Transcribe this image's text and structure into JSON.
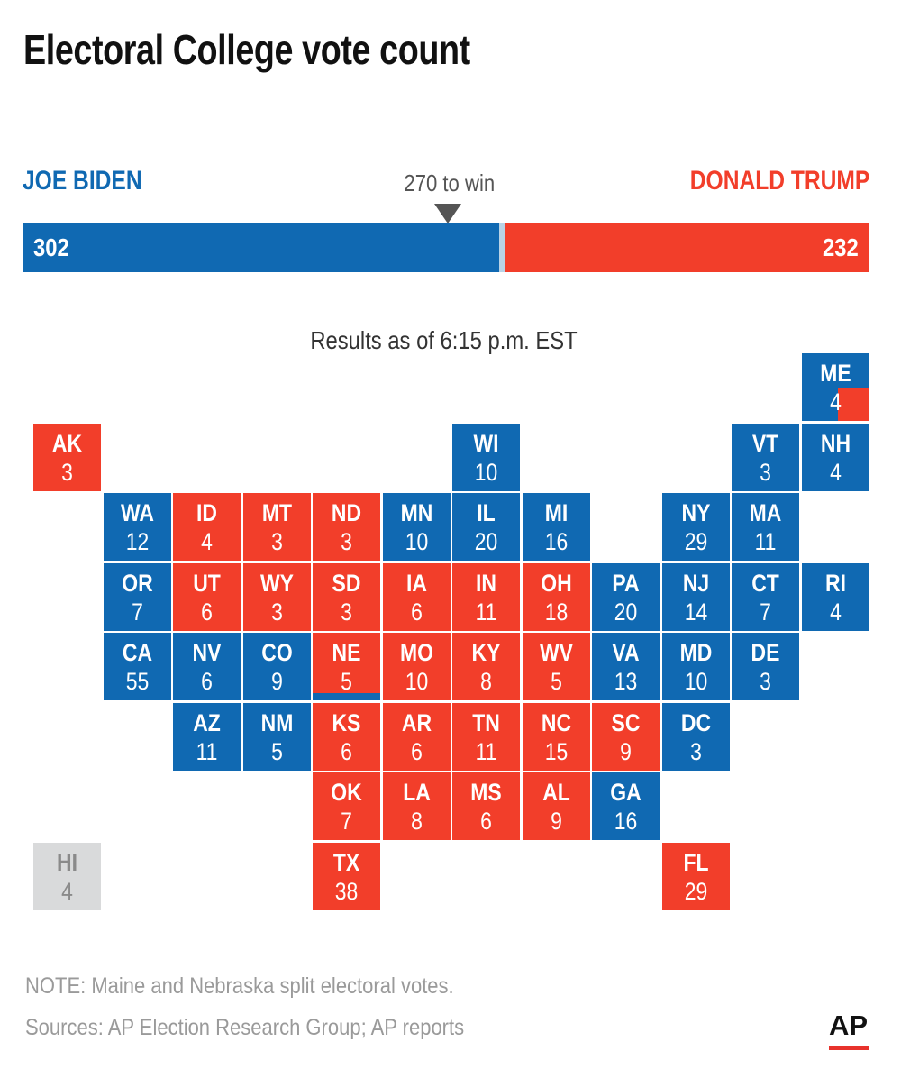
{
  "title": "Electoral College vote count",
  "colors": {
    "biden": "#1069b2",
    "trump": "#f23e2a",
    "uncalled": "#d9dadb"
  },
  "candidates": {
    "biden": {
      "name": "JOE BIDEN",
      "votes": 302
    },
    "trump": {
      "name": "DONALD TRUMP",
      "votes": 232
    }
  },
  "win_label": "270 to win",
  "win_threshold": 270,
  "total_votes": 538,
  "results_note": "Results as of 6:15 p.m. EST",
  "states": [
    {
      "abbr": "ME",
      "votes": 4,
      "winner": "biden",
      "col": 11,
      "row": 0,
      "split": "trump-corner"
    },
    {
      "abbr": "AK",
      "votes": 3,
      "winner": "trump",
      "col": 0,
      "row": 1
    },
    {
      "abbr": "WI",
      "votes": 10,
      "winner": "biden",
      "col": 6,
      "row": 1
    },
    {
      "abbr": "VT",
      "votes": 3,
      "winner": "biden",
      "col": 10,
      "row": 1
    },
    {
      "abbr": "NH",
      "votes": 4,
      "winner": "biden",
      "col": 11,
      "row": 1
    },
    {
      "abbr": "WA",
      "votes": 12,
      "winner": "biden",
      "col": 1,
      "row": 2
    },
    {
      "abbr": "ID",
      "votes": 4,
      "winner": "trump",
      "col": 2,
      "row": 2
    },
    {
      "abbr": "MT",
      "votes": 3,
      "winner": "trump",
      "col": 3,
      "row": 2
    },
    {
      "abbr": "ND",
      "votes": 3,
      "winner": "trump",
      "col": 4,
      "row": 2
    },
    {
      "abbr": "MN",
      "votes": 10,
      "winner": "biden",
      "col": 5,
      "row": 2
    },
    {
      "abbr": "IL",
      "votes": 20,
      "winner": "biden",
      "col": 6,
      "row": 2
    },
    {
      "abbr": "MI",
      "votes": 16,
      "winner": "biden",
      "col": 7,
      "row": 2
    },
    {
      "abbr": "NY",
      "votes": 29,
      "winner": "biden",
      "col": 9,
      "row": 2
    },
    {
      "abbr": "MA",
      "votes": 11,
      "winner": "biden",
      "col": 10,
      "row": 2
    },
    {
      "abbr": "OR",
      "votes": 7,
      "winner": "biden",
      "col": 1,
      "row": 3
    },
    {
      "abbr": "UT",
      "votes": 6,
      "winner": "trump",
      "col": 2,
      "row": 3
    },
    {
      "abbr": "WY",
      "votes": 3,
      "winner": "trump",
      "col": 3,
      "row": 3
    },
    {
      "abbr": "SD",
      "votes": 3,
      "winner": "trump",
      "col": 4,
      "row": 3
    },
    {
      "abbr": "IA",
      "votes": 6,
      "winner": "trump",
      "col": 5,
      "row": 3
    },
    {
      "abbr": "IN",
      "votes": 11,
      "winner": "trump",
      "col": 6,
      "row": 3
    },
    {
      "abbr": "OH",
      "votes": 18,
      "winner": "trump",
      "col": 7,
      "row": 3
    },
    {
      "abbr": "PA",
      "votes": 20,
      "winner": "biden",
      "col": 8,
      "row": 3
    },
    {
      "abbr": "NJ",
      "votes": 14,
      "winner": "biden",
      "col": 9,
      "row": 3
    },
    {
      "abbr": "CT",
      "votes": 7,
      "winner": "biden",
      "col": 10,
      "row": 3
    },
    {
      "abbr": "RI",
      "votes": 4,
      "winner": "biden",
      "col": 11,
      "row": 3
    },
    {
      "abbr": "CA",
      "votes": 55,
      "winner": "biden",
      "col": 1,
      "row": 4
    },
    {
      "abbr": "NV",
      "votes": 6,
      "winner": "biden",
      "col": 2,
      "row": 4
    },
    {
      "abbr": "CO",
      "votes": 9,
      "winner": "biden",
      "col": 3,
      "row": 4
    },
    {
      "abbr": "NE",
      "votes": 5,
      "winner": "trump",
      "col": 4,
      "row": 4,
      "split": "biden-bottom"
    },
    {
      "abbr": "MO",
      "votes": 10,
      "winner": "trump",
      "col": 5,
      "row": 4
    },
    {
      "abbr": "KY",
      "votes": 8,
      "winner": "trump",
      "col": 6,
      "row": 4
    },
    {
      "abbr": "WV",
      "votes": 5,
      "winner": "trump",
      "col": 7,
      "row": 4
    },
    {
      "abbr": "VA",
      "votes": 13,
      "winner": "biden",
      "col": 8,
      "row": 4
    },
    {
      "abbr": "MD",
      "votes": 10,
      "winner": "biden",
      "col": 9,
      "row": 4
    },
    {
      "abbr": "DE",
      "votes": 3,
      "winner": "biden",
      "col": 10,
      "row": 4
    },
    {
      "abbr": "AZ",
      "votes": 11,
      "winner": "biden",
      "col": 2,
      "row": 5
    },
    {
      "abbr": "NM",
      "votes": 5,
      "winner": "biden",
      "col": 3,
      "row": 5
    },
    {
      "abbr": "KS",
      "votes": 6,
      "winner": "trump",
      "col": 4,
      "row": 5
    },
    {
      "abbr": "AR",
      "votes": 6,
      "winner": "trump",
      "col": 5,
      "row": 5
    },
    {
      "abbr": "TN",
      "votes": 11,
      "winner": "trump",
      "col": 6,
      "row": 5
    },
    {
      "abbr": "NC",
      "votes": 15,
      "winner": "trump",
      "col": 7,
      "row": 5
    },
    {
      "abbr": "SC",
      "votes": 9,
      "winner": "trump",
      "col": 8,
      "row": 5
    },
    {
      "abbr": "DC",
      "votes": 3,
      "winner": "biden",
      "col": 9,
      "row": 5
    },
    {
      "abbr": "OK",
      "votes": 7,
      "winner": "trump",
      "col": 4,
      "row": 6
    },
    {
      "abbr": "LA",
      "votes": 8,
      "winner": "trump",
      "col": 5,
      "row": 6
    },
    {
      "abbr": "MS",
      "votes": 6,
      "winner": "trump",
      "col": 6,
      "row": 6
    },
    {
      "abbr": "AL",
      "votes": 9,
      "winner": "trump",
      "col": 7,
      "row": 6
    },
    {
      "abbr": "GA",
      "votes": 16,
      "winner": "biden",
      "col": 8,
      "row": 6
    },
    {
      "abbr": "HI",
      "votes": 4,
      "winner": "uncalled",
      "col": 0,
      "row": 7
    },
    {
      "abbr": "TX",
      "votes": 38,
      "winner": "trump",
      "col": 4,
      "row": 7
    },
    {
      "abbr": "FL",
      "votes": 29,
      "winner": "trump",
      "col": 9,
      "row": 7
    }
  ],
  "footnotes": {
    "note": "NOTE: Maine and Nebraska split electoral votes.",
    "sources": "Sources: AP Election Research Group; AP reports"
  },
  "logo": "AP"
}
